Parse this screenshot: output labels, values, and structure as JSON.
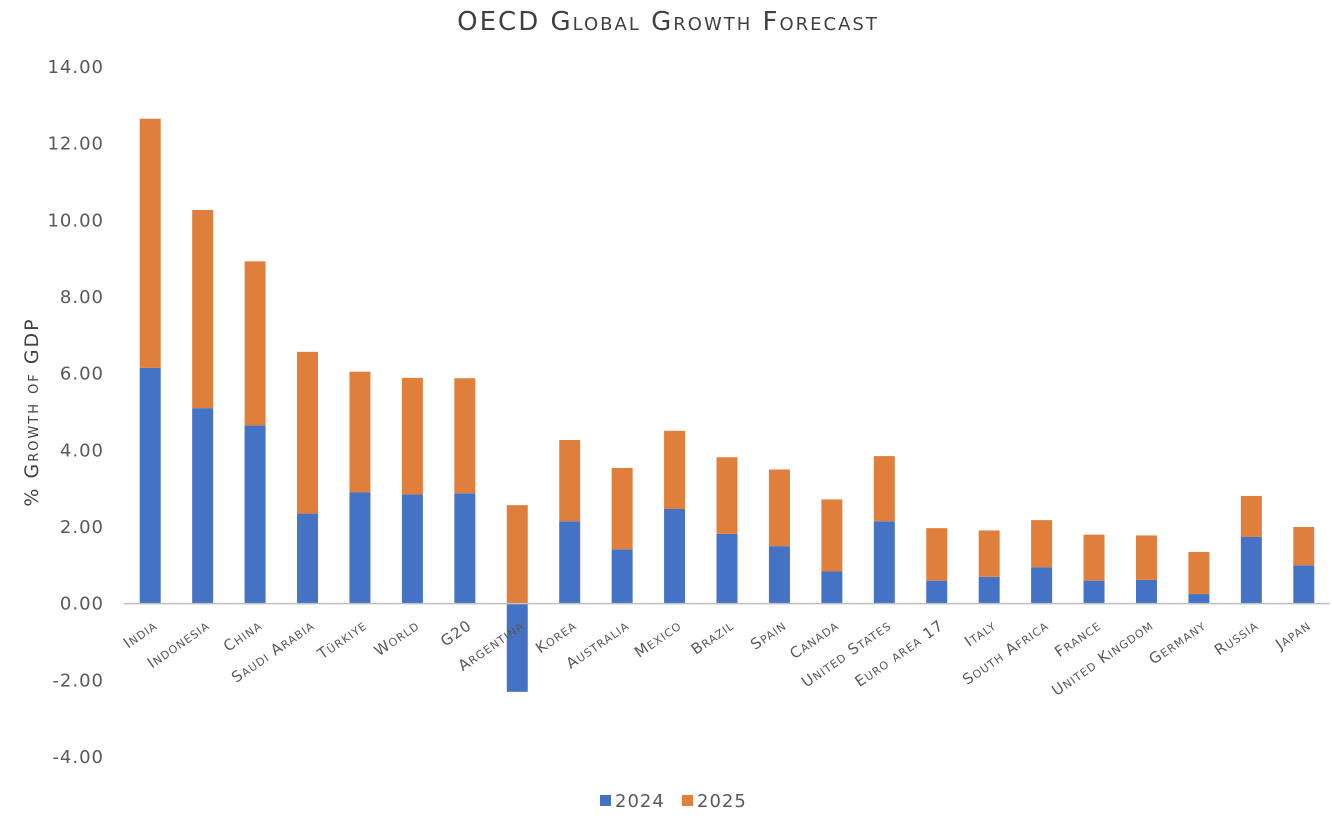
{
  "chart_data": {
    "type": "bar",
    "stacked": true,
    "title": "OECD Global Growth Forecast",
    "xlabel": "",
    "ylabel": "% Growth of GDP",
    "ylim": [
      -4,
      14
    ],
    "yticks": [
      "-4.00",
      "-2.00",
      "0.00",
      "2.00",
      "4.00",
      "6.00",
      "8.00",
      "10.00",
      "12.00",
      "14.00"
    ],
    "grid": false,
    "legend_position": "bottom",
    "categories": [
      "India",
      "Indonesia",
      "China",
      "Saudi Arabia",
      "Türkiye",
      "World",
      "G20",
      "Argentina",
      "Korea",
      "Australia",
      "Mexico",
      "Brazil",
      "Spain",
      "Canada",
      "United States",
      "Euro area 17",
      "Italy",
      "South Africa",
      "France",
      "United Kingdom",
      "Germany",
      "Russia",
      "Japan"
    ],
    "series": [
      {
        "name": "2024",
        "color": "#4472c4",
        "values": [
          6.15,
          5.1,
          4.65,
          2.35,
          2.9,
          2.85,
          2.88,
          -2.3,
          2.15,
          1.42,
          2.47,
          1.82,
          1.5,
          0.84,
          2.15,
          0.6,
          0.7,
          0.95,
          0.6,
          0.62,
          0.25,
          1.74,
          1.0
        ]
      },
      {
        "name": "2025",
        "color": "#e07f3c",
        "values": [
          6.5,
          5.17,
          4.28,
          4.22,
          3.15,
          3.04,
          3.0,
          2.57,
          2.12,
          2.12,
          2.04,
          2.0,
          2.0,
          1.88,
          1.7,
          1.37,
          1.21,
          1.23,
          1.2,
          1.16,
          1.1,
          1.07,
          1.0
        ]
      }
    ]
  }
}
